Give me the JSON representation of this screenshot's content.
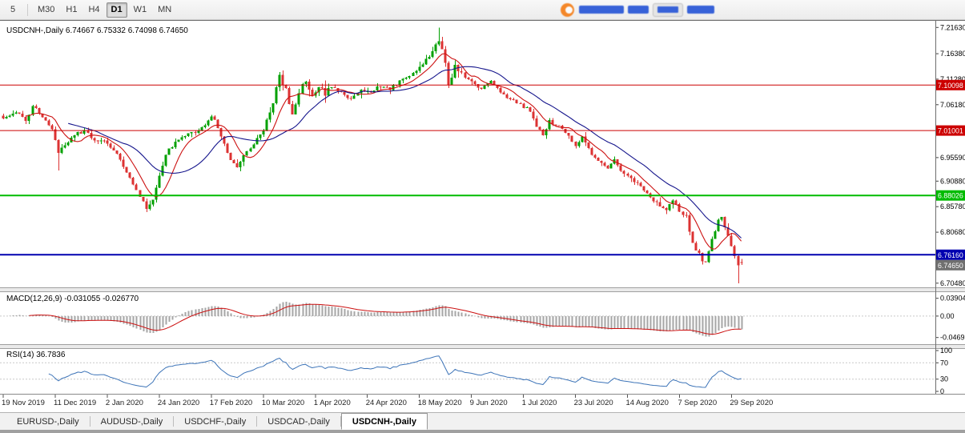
{
  "toolbar": {
    "timeframes": [
      {
        "label": "5",
        "active": false
      },
      {
        "label": "M30",
        "active": false
      },
      {
        "label": "H1",
        "active": false
      },
      {
        "label": "H4",
        "active": false
      },
      {
        "label": "D1",
        "active": true
      },
      {
        "label": "W1",
        "active": false
      },
      {
        "label": "MN",
        "active": false
      }
    ]
  },
  "chart": {
    "symbol": "USDCNH-",
    "period": "Daily",
    "title": "USDCNH-,Daily  6.74667 6.75332 6.74098 6.74650",
    "open": "6.74667",
    "high": "6.75332",
    "low": "6.74098",
    "close": "6.74650"
  },
  "price_axis": {
    "ticks": [
      "7.21630",
      "7.16380",
      "7.11280",
      "7.06180",
      "6.95590",
      "6.90880",
      "6.85780",
      "6.80680",
      "6.70480"
    ],
    "current": {
      "label": "6.74650",
      "price": 6.7465
    }
  },
  "macd": {
    "label": "MACD(12,26,9) -0.031055 -0.026770",
    "main_value": -0.031055,
    "signal_value": -0.02677,
    "ticks": [
      "0.039044",
      "0.00",
      "-0.046955"
    ]
  },
  "rsi": {
    "label": "RSI(14) 36.7836",
    "value": 36.7836,
    "ticks": [
      "100",
      "70",
      "30",
      "0"
    ],
    "levels": [
      70,
      30
    ]
  },
  "tabs": [
    {
      "label": "EURUSD-,Daily",
      "active": false
    },
    {
      "label": "AUDUSD-,Daily",
      "active": false
    },
    {
      "label": "USDCHF-,Daily",
      "active": false
    },
    {
      "label": "USDCAD-,Daily",
      "active": false
    },
    {
      "label": "USDCNH-,Daily",
      "active": true
    }
  ],
  "colors": {
    "bull": "#00A000",
    "bear": "#DC3232",
    "ma_fast": "#CC1111",
    "ma_slow": "#15158C",
    "macd_histogram": "#A6A6A6",
    "macd_signal": "#CC1111",
    "rsi_line": "#3D74B8",
    "level_red": "#CC0000",
    "level_green": "#00BB00",
    "level_blue": "#0000B0",
    "current_tag_bg": "#6F6F6F",
    "logo_orange": "#F5821F",
    "logo_blue": "#2E5BD7"
  },
  "chart_data": {
    "type": "candlestick",
    "symbol": "USDCNH",
    "timeframe": "Daily",
    "bars": 228,
    "y_range": [
      6.698,
      7.228
    ],
    "price_ticks": [
      7.2163,
      7.1638,
      7.1128,
      7.0618,
      6.9559,
      6.9088,
      6.8578,
      6.8068,
      6.7048
    ],
    "levels": [
      {
        "label": "7.10098",
        "price": 7.10098,
        "color": "#CC0000",
        "width": 1
      },
      {
        "label": "7.01001",
        "price": 7.01001,
        "color": "#CC0000",
        "width": 1
      },
      {
        "label": "6.88026",
        "price": 6.88026,
        "color": "#00BB00",
        "width": 2
      },
      {
        "label": "6.76160",
        "price": 6.7616,
        "color": "#0000B0",
        "width": 2
      }
    ],
    "current_price": 6.7465,
    "last_candle": {
      "open": 6.74667,
      "high": 6.75332,
      "low": 6.74098,
      "close": 6.7465
    },
    "wick_overrides": [
      {
        "bar": 134,
        "high": 7.2163
      },
      {
        "bar": 226,
        "low": 6.7048
      },
      {
        "bar": 17,
        "low": 6.93
      },
      {
        "bar": 44,
        "low": 6.847
      }
    ],
    "x_labels": [
      {
        "bar": 0,
        "label": "19 Nov 2019"
      },
      {
        "bar": 16,
        "label": "11 Dec 2019"
      },
      {
        "bar": 32,
        "label": "2 Jan 2020"
      },
      {
        "bar": 48,
        "label": "24 Jan 2020"
      },
      {
        "bar": 64,
        "label": "17 Feb 2020"
      },
      {
        "bar": 80,
        "label": "10 Mar 2020"
      },
      {
        "bar": 96,
        "label": "1 Apr 2020"
      },
      {
        "bar": 112,
        "label": "24 Apr 2020"
      },
      {
        "bar": 128,
        "label": "18 May 2020"
      },
      {
        "bar": 144,
        "label": "9 Jun 2020"
      },
      {
        "bar": 160,
        "label": "1 Jul 2020"
      },
      {
        "bar": 176,
        "label": "23 Jul 2020"
      },
      {
        "bar": 192,
        "label": "14 Aug 2020"
      },
      {
        "bar": 208,
        "label": "7 Sep 2020"
      },
      {
        "bar": 224,
        "label": "29 Sep 2020"
      }
    ],
    "close_anchors": [
      [
        0,
        7.034
      ],
      [
        4,
        7.048
      ],
      [
        7,
        7.028
      ],
      [
        9,
        7.058
      ],
      [
        12,
        7.04
      ],
      [
        15,
        7.012
      ],
      [
        17,
        6.966
      ],
      [
        19,
        6.98
      ],
      [
        22,
        7.002
      ],
      [
        25,
        7.008
      ],
      [
        28,
        6.992
      ],
      [
        31,
        6.988
      ],
      [
        34,
        6.972
      ],
      [
        37,
        6.94
      ],
      [
        40,
        6.905
      ],
      [
        42,
        6.878
      ],
      [
        44,
        6.856
      ],
      [
        46,
        6.87
      ],
      [
        48,
        6.92
      ],
      [
        50,
        6.962
      ],
      [
        53,
        6.988
      ],
      [
        56,
        7.0
      ],
      [
        59,
        7.008
      ],
      [
        62,
        7.022
      ],
      [
        64,
        7.04
      ],
      [
        66,
        7.018
      ],
      [
        68,
        6.985
      ],
      [
        70,
        6.948
      ],
      [
        72,
        6.935
      ],
      [
        74,
        6.962
      ],
      [
        77,
        6.985
      ],
      [
        80,
        7.012
      ],
      [
        83,
        7.06
      ],
      [
        85,
        7.125
      ],
      [
        87,
        7.09
      ],
      [
        89,
        7.04
      ],
      [
        91,
        7.088
      ],
      [
        93,
        7.11
      ],
      [
        95,
        7.082
      ],
      [
        97,
        7.098
      ],
      [
        99,
        7.082
      ],
      [
        101,
        7.1
      ],
      [
        104,
        7.088
      ],
      [
        107,
        7.072
      ],
      [
        110,
        7.092
      ],
      [
        113,
        7.088
      ],
      [
        116,
        7.1
      ],
      [
        119,
        7.094
      ],
      [
        122,
        7.108
      ],
      [
        125,
        7.12
      ],
      [
        128,
        7.138
      ],
      [
        131,
        7.158
      ],
      [
        133,
        7.178
      ],
      [
        134,
        7.192
      ],
      [
        136,
        7.15
      ],
      [
        137,
        7.1
      ],
      [
        139,
        7.138
      ],
      [
        141,
        7.122
      ],
      [
        144,
        7.108
      ],
      [
        147,
        7.092
      ],
      [
        150,
        7.108
      ],
      [
        153,
        7.088
      ],
      [
        156,
        7.072
      ],
      [
        159,
        7.062
      ],
      [
        162,
        7.05
      ],
      [
        164,
        7.018
      ],
      [
        166,
        7.002
      ],
      [
        168,
        7.028
      ],
      [
        171,
        7.018
      ],
      [
        174,
        6.998
      ],
      [
        176,
        6.982
      ],
      [
        178,
        6.996
      ],
      [
        180,
        6.972
      ],
      [
        183,
        6.948
      ],
      [
        186,
        6.932
      ],
      [
        188,
        6.954
      ],
      [
        190,
        6.928
      ],
      [
        193,
        6.912
      ],
      [
        196,
        6.898
      ],
      [
        199,
        6.878
      ],
      [
        202,
        6.86
      ],
      [
        204,
        6.852
      ],
      [
        206,
        6.872
      ],
      [
        208,
        6.848
      ],
      [
        210,
        6.838
      ],
      [
        211,
        6.805
      ],
      [
        213,
        6.772
      ],
      [
        215,
        6.752
      ],
      [
        216,
        6.746
      ],
      [
        218,
        6.792
      ],
      [
        220,
        6.828
      ],
      [
        221,
        6.838
      ],
      [
        223,
        6.798
      ],
      [
        225,
        6.756
      ],
      [
        226,
        6.738
      ],
      [
        227,
        6.7465
      ]
    ],
    "indicators_shown": [
      "MACD(12,26,9)",
      "RSI(14)",
      "MA fast red",
      "MA slow dark-blue"
    ]
  }
}
